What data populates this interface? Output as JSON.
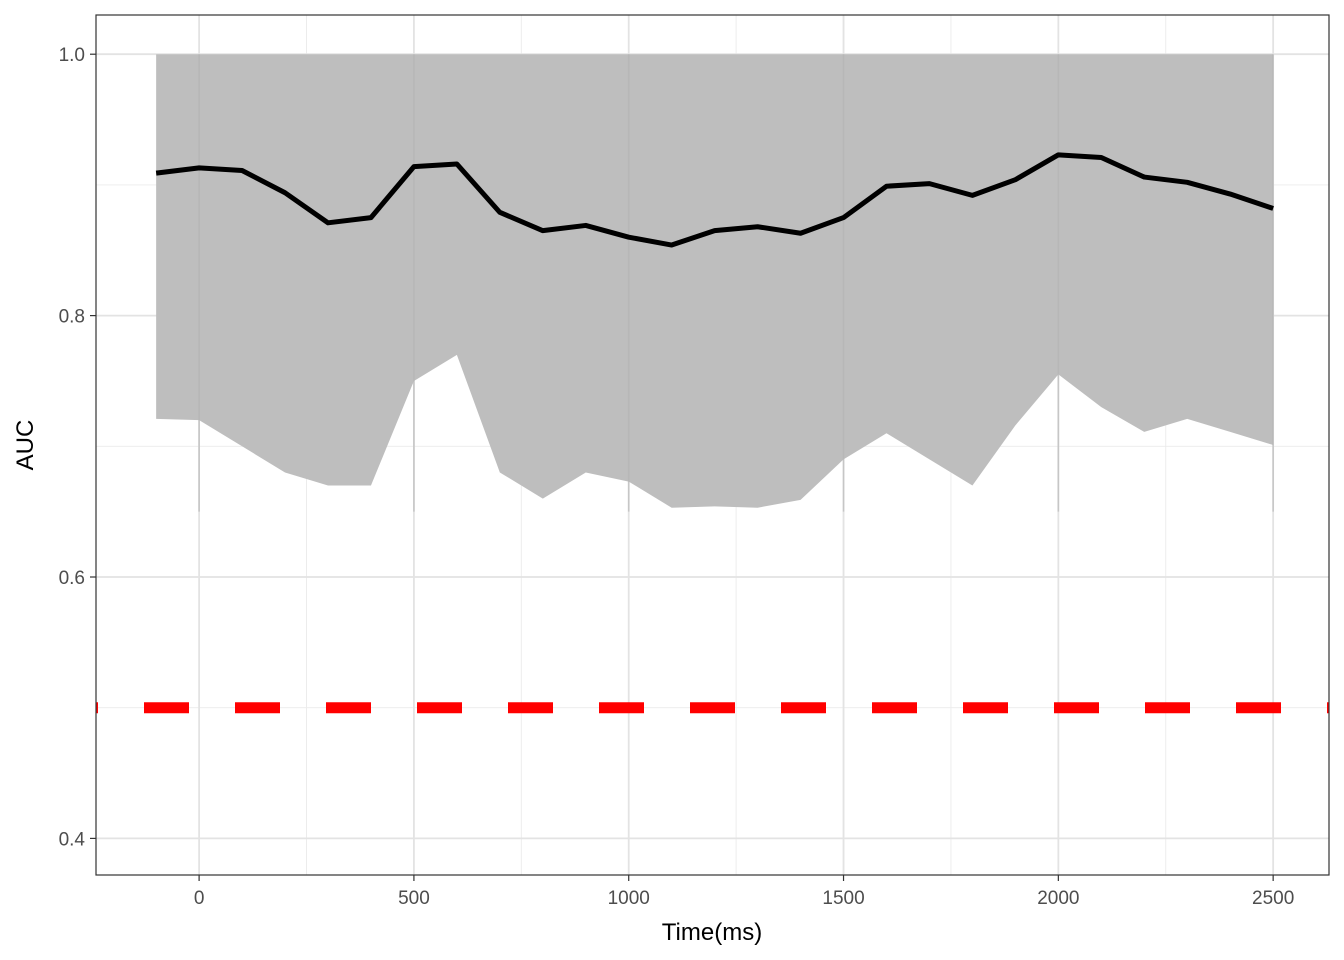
{
  "chart_data": {
    "type": "line",
    "title": "",
    "xlabel": "Time(ms)",
    "ylabel": "AUC",
    "xlim": [
      -240,
      2630
    ],
    "ylim": [
      0.372,
      1.03
    ],
    "xticks": [
      0,
      500,
      1000,
      1500,
      2000,
      2500
    ],
    "yticks": [
      0.4,
      0.6,
      0.8,
      1.0
    ],
    "ytick_labels": [
      "0.4",
      "0.6",
      "0.8",
      "1.0"
    ],
    "grid": true,
    "legend": "none",
    "x": [
      -100,
      0,
      100,
      200,
      300,
      400,
      500,
      600,
      700,
      800,
      900,
      1000,
      1100,
      1200,
      1300,
      1400,
      1500,
      1600,
      1700,
      1800,
      1900,
      2000,
      2100,
      2200,
      2300,
      2400,
      2500
    ],
    "series": [
      {
        "values": [
          0.909,
          0.913,
          0.911,
          0.894,
          0.871,
          0.875,
          0.914,
          0.916,
          0.879,
          0.865,
          0.869,
          0.86,
          0.854,
          0.865,
          0.868,
          0.863,
          0.875,
          0.899,
          0.901,
          0.892,
          0.904,
          0.923,
          0.921,
          0.906,
          0.902,
          0.893,
          0.882
        ],
        "color": "#000000"
      }
    ],
    "band": {
      "lower": [
        0.721,
        0.72,
        0.7,
        0.68,
        0.67,
        0.67,
        0.75,
        0.77,
        0.68,
        0.66,
        0.68,
        0.673,
        0.653,
        0.654,
        0.653,
        0.659,
        0.69,
        0.71,
        0.69,
        0.67,
        0.716,
        0.755,
        0.73,
        0.711,
        0.721,
        0.711,
        0.701
      ],
      "upper": [
        1.0,
        1.0,
        1.0,
        1.0,
        1.0,
        1.0,
        1.0,
        1.0,
        1.0,
        1.0,
        1.0,
        1.0,
        1.0,
        1.0,
        1.0,
        1.0,
        1.0,
        1.0,
        1.0,
        1.0,
        1.0,
        1.0,
        1.0,
        1.0,
        1.0,
        1.0,
        1.0
      ],
      "color": "#bebebe"
    },
    "reference_line": {
      "y": 0.5,
      "color": "#ff0000",
      "style": "dashed"
    }
  }
}
